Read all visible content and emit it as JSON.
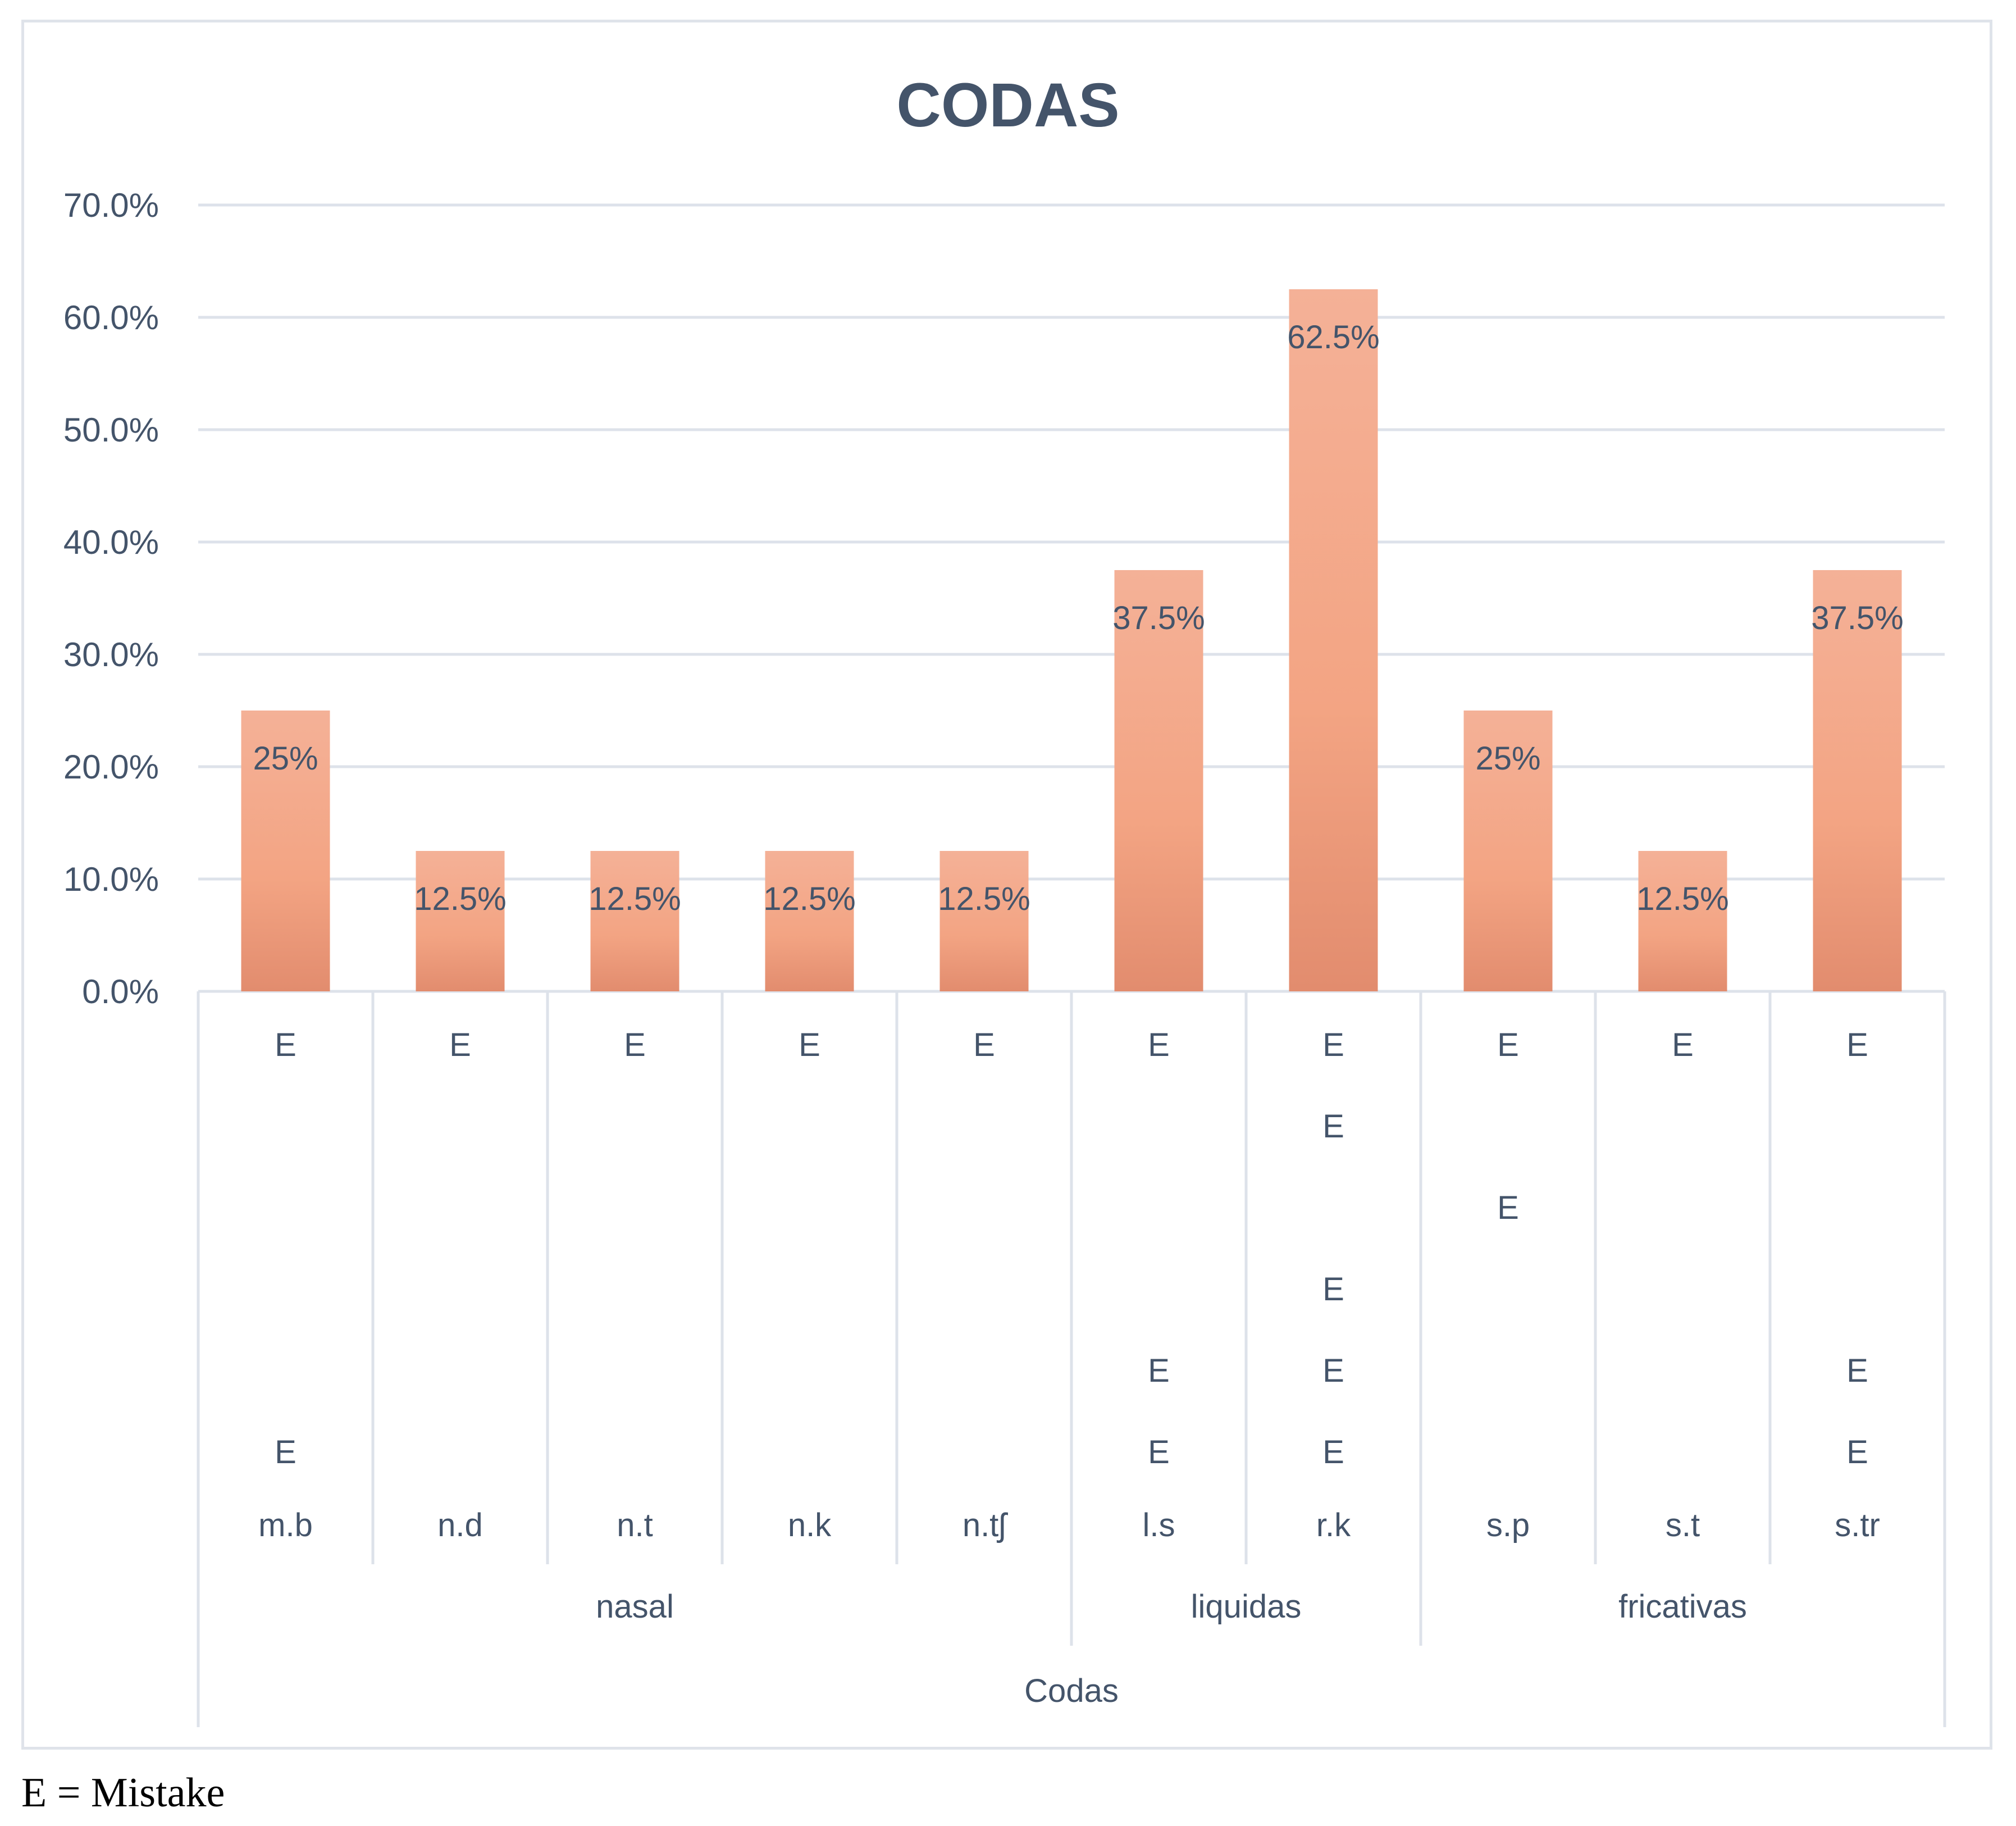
{
  "colors": {
    "bar_top": "#f4b197",
    "bar_mid": "#f3a483",
    "bar_bottom": "#e28c6e",
    "grid": "#dde2ea",
    "text": "#44546a",
    "frame": "#dfe3ea"
  },
  "footnote": "E = Mistake",
  "chart_data": {
    "type": "bar",
    "title": "CODAS",
    "xlabel": "Codas",
    "ylabel": "",
    "ylim": [
      0,
      0.7
    ],
    "y_ticks": [
      {
        "value": 0.0,
        "label": "0.0%"
      },
      {
        "value": 0.1,
        "label": "10.0%"
      },
      {
        "value": 0.2,
        "label": "20.0%"
      },
      {
        "value": 0.3,
        "label": "30.0%"
      },
      {
        "value": 0.4,
        "label": "40.0%"
      },
      {
        "value": 0.5,
        "label": "50.0%"
      },
      {
        "value": 0.6,
        "label": "60.0%"
      },
      {
        "value": 0.7,
        "label": "70.0%"
      }
    ],
    "grid": true,
    "categories": [
      "m.b",
      "n.d",
      "n.t",
      "n.k",
      "n.tʃ",
      "l.s",
      "r.k",
      "s.p",
      "s.t",
      "s.tr"
    ],
    "values": [
      0.25,
      0.125,
      0.125,
      0.125,
      0.125,
      0.375,
      0.625,
      0.25,
      0.125,
      0.375
    ],
    "data_labels": [
      "25%",
      "12.5%",
      "12.5%",
      "12.5%",
      "12.5%",
      "37.5%",
      "62.5%",
      "25%",
      "12.5%",
      "37.5%"
    ],
    "mistake_marker": "E",
    "mistake_rows": [
      [
        1,
        6
      ],
      [
        1
      ],
      [
        1
      ],
      [
        1
      ],
      [
        1
      ],
      [
        1,
        5,
        6
      ],
      [
        1,
        2,
        4,
        5,
        6
      ],
      [
        1,
        3
      ],
      [
        1
      ],
      [
        1,
        5,
        6
      ]
    ],
    "groups": [
      {
        "label": "nasal",
        "span": [
          0,
          4
        ]
      },
      {
        "label": "liquidas",
        "span": [
          5,
          6
        ]
      },
      {
        "label": "fricativas",
        "span": [
          7,
          9
        ]
      }
    ]
  }
}
